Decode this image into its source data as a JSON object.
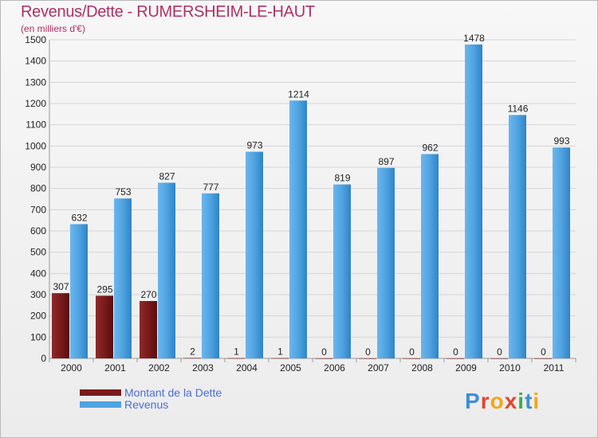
{
  "header": {
    "title": "Revenus/Dette - RUMERSHEIM-LE-HAUT",
    "subtitle": "(en milliers d'€)"
  },
  "colors": {
    "dette": "#7a1a1a",
    "revenus": "#4fa3e0",
    "title": "#b03060",
    "legend_text": "#4a6ed8"
  },
  "legend": {
    "items": [
      {
        "label": "Montant de la Dette",
        "color": "#7a1a1a"
      },
      {
        "label": "Revenus",
        "color": "#4fa3e0"
      }
    ]
  },
  "logo": {
    "text": "Proxiti",
    "letters": [
      {
        "ch": "P",
        "color": "#3d8fd6"
      },
      {
        "ch": "r",
        "color": "#e4462b"
      },
      {
        "ch": "o",
        "color": "#f2a51a"
      },
      {
        "ch": "x",
        "color": "#e4462b"
      },
      {
        "ch": "i",
        "color": "#3fae49"
      },
      {
        "ch": "t",
        "color": "#3d8fd6"
      },
      {
        "ch": "i",
        "color": "#f2a51a"
      }
    ]
  },
  "chart_data": {
    "type": "bar",
    "title": "Revenus/Dette - RUMERSHEIM-LE-HAUT",
    "subtitle": "(en milliers d'€)",
    "categories": [
      "2000",
      "2001",
      "2002",
      "2003",
      "2004",
      "2005",
      "2006",
      "2007",
      "2008",
      "2009",
      "2010",
      "2011"
    ],
    "series": [
      {
        "name": "Montant de la Dette",
        "values": [
          307,
          295,
          270,
          2,
          1,
          1,
          0,
          0,
          0,
          0,
          0,
          0
        ]
      },
      {
        "name": "Revenus",
        "values": [
          632,
          753,
          827,
          777,
          973,
          1214,
          819,
          897,
          962,
          1478,
          1146,
          993
        ]
      }
    ],
    "ylim": [
      0,
      1500
    ],
    "yticks": [
      0,
      100,
      200,
      300,
      400,
      500,
      600,
      700,
      800,
      900,
      1000,
      1100,
      1200,
      1300,
      1400,
      1500
    ],
    "grid": true,
    "legend_position": "bottom-left"
  }
}
